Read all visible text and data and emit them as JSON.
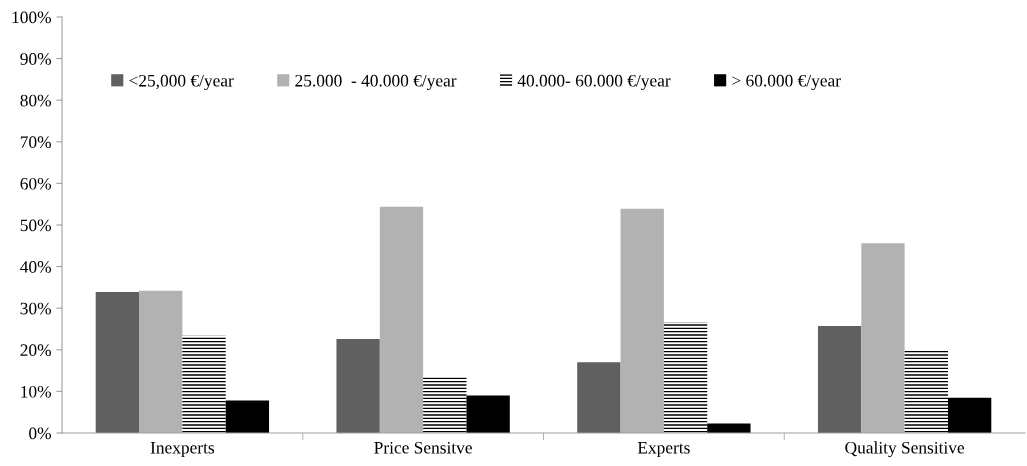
{
  "chart_data": {
    "type": "bar",
    "categories": [
      "Inexperts",
      "Price Sensitve",
      "Experts",
      "Quality Sensitive"
    ],
    "series": [
      {
        "name": "<25,000 €/year",
        "color": "#606060",
        "values": [
          33.9,
          22.6,
          17.0,
          25.7
        ]
      },
      {
        "name": "25.000  - 40.000 €/year",
        "color": "#b2b2b2",
        "values": [
          34.2,
          54.4,
          53.9,
          45.6
        ]
      },
      {
        "name": "40.000- 60.000 €/year",
        "color": "#ffffff",
        "values": [
          23.4,
          13.4,
          26.7,
          20.1
        ]
      },
      {
        "name": "> 60.000 €/year",
        "color": "#000000",
        "values": [
          7.8,
          9.0,
          2.3,
          8.5
        ]
      }
    ],
    "ylim": [
      0,
      100
    ],
    "yticks": [
      {
        "value": 0,
        "label": "0%"
      },
      {
        "value": 10,
        "label": "10%"
      },
      {
        "value": 20,
        "label": "20%"
      },
      {
        "value": 30,
        "label": "30%"
      },
      {
        "value": 40,
        "label": "40%"
      },
      {
        "value": 50,
        "label": "50%"
      },
      {
        "value": 60,
        "label": "60%"
      },
      {
        "value": 70,
        "label": "70%"
      },
      {
        "value": 80,
        "label": "80%"
      },
      {
        "value": 90,
        "label": "90%"
      },
      {
        "value": 100,
        "label": "100%"
      }
    ],
    "grid": false,
    "legend": "top"
  }
}
